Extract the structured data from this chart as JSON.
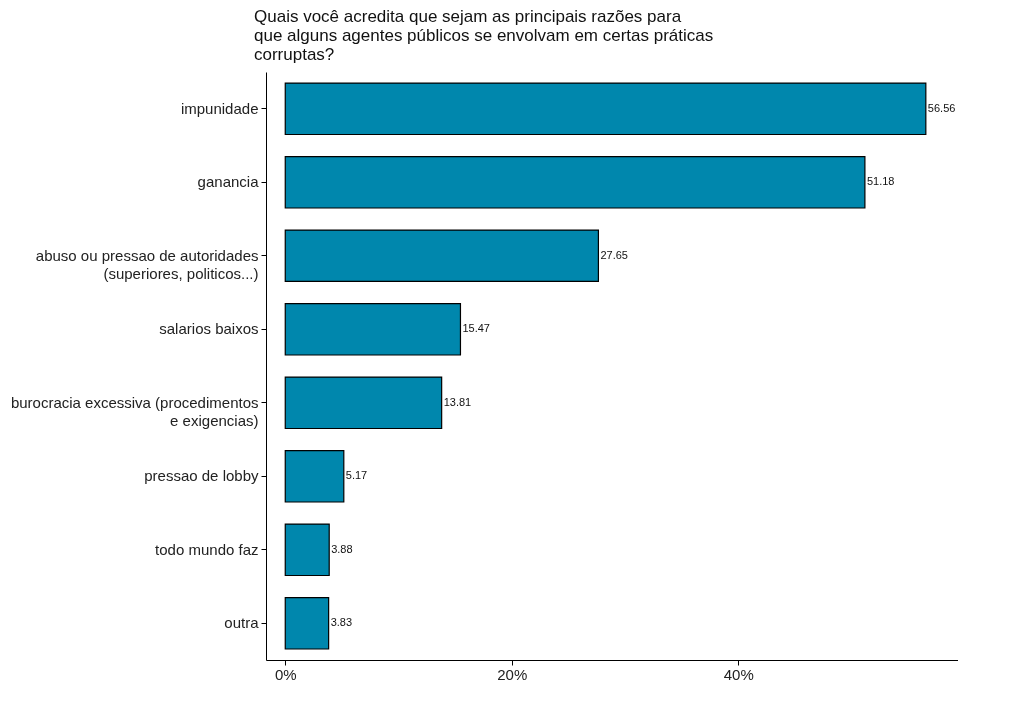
{
  "chart_data": {
    "type": "bar",
    "orientation": "horizontal",
    "title": "Quais você acredita que sejam as principais razões para\nque alguns agentes públicos se envolvam em certas práticas\ncorruptas?",
    "categories": [
      "impunidade",
      "ganancia",
      "abuso ou pressao de autoridades\n(superiores, politicos...)",
      "salarios baixos",
      "burocracia excessiva (procedimentos\ne exigencias)",
      "pressao de lobby",
      "todo mundo faz",
      "outra"
    ],
    "values": [
      56.56,
      51.18,
      27.65,
      15.47,
      13.81,
      5.17,
      3.88,
      3.83
    ],
    "color": "#0087ad",
    "xlim": [
      -1.7,
      59.4
    ],
    "xticks": [
      {
        "value": 0,
        "label": "0%"
      },
      {
        "value": 20,
        "label": "20%"
      },
      {
        "value": 40,
        "label": "40%"
      }
    ],
    "data_labels": true
  }
}
